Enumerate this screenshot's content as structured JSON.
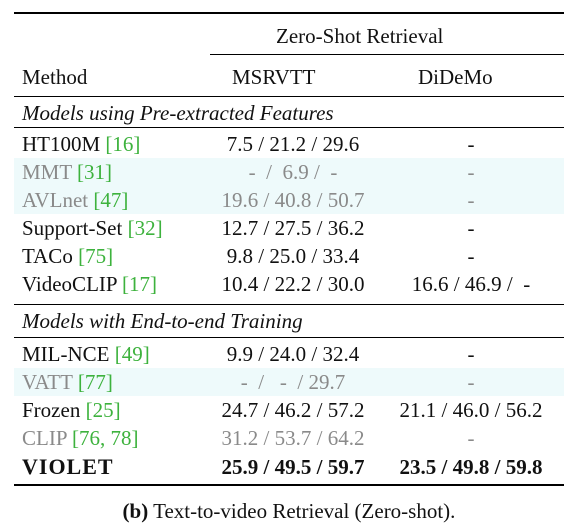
{
  "header": {
    "group": "Zero-Shot Retrieval",
    "method": "Method",
    "col1": "MSRVTT",
    "col2": "DiDeMo"
  },
  "sections": [
    {
      "title": "Models using Pre-extracted Features",
      "rows": [
        {
          "name": "HT100M ",
          "cite": "[16]",
          "msrvtt": "7.5 / 21.2 / 29.6",
          "didemo": "-",
          "grey": false
        },
        {
          "name": "MMT ",
          "cite": "[31]",
          "msrvtt": "-  /  6.9 /  -",
          "didemo": "-",
          "grey": true
        },
        {
          "name": "AVLnet ",
          "cite": "[47]",
          "msrvtt": "19.6 / 40.8 / 50.7",
          "didemo": "-",
          "grey": true
        },
        {
          "name": "Support-Set ",
          "cite": "[32]",
          "msrvtt": "12.7 / 27.5 / 36.2",
          "didemo": "-",
          "grey": false
        },
        {
          "name": "TACo ",
          "cite": "[75]",
          "msrvtt": "9.8 / 25.0 / 33.4",
          "didemo": "-",
          "grey": false
        },
        {
          "name": "VideoCLIP ",
          "cite": "[17]",
          "msrvtt": "10.4 / 22.2 / 30.0",
          "didemo": "16.6 / 46.9 /  -",
          "grey": false
        }
      ]
    },
    {
      "title": "Models with End-to-end Training",
      "rows": [
        {
          "name": "MIL-NCE ",
          "cite": "[49]",
          "msrvtt": "9.9 / 24.0 / 32.4",
          "didemo": "-",
          "grey": false
        },
        {
          "name": "VATT ",
          "cite": "[77]",
          "msrvtt": "-  /   -  / 29.7",
          "didemo": "-",
          "grey": true
        },
        {
          "name": "Frozen ",
          "cite": "[25]",
          "msrvtt": "24.7 / 46.2 / 57.2",
          "didemo": "21.1 / 46.0 / 56.2",
          "grey": false
        },
        {
          "name": "CLIP ",
          "cite": "[76, 78]",
          "msrvtt": "31.2 / 53.7 / 64.2",
          "didemo": "-",
          "grey": true
        }
      ]
    }
  ],
  "final_row": {
    "name": "VIOLET",
    "msrvtt": "25.9 / 49.5 / 59.7",
    "didemo": "23.5 / 49.8 / 59.8"
  },
  "caption": {
    "label": "(b)",
    "text": " Text-to-video Retrieval (Zero-shot)."
  }
}
